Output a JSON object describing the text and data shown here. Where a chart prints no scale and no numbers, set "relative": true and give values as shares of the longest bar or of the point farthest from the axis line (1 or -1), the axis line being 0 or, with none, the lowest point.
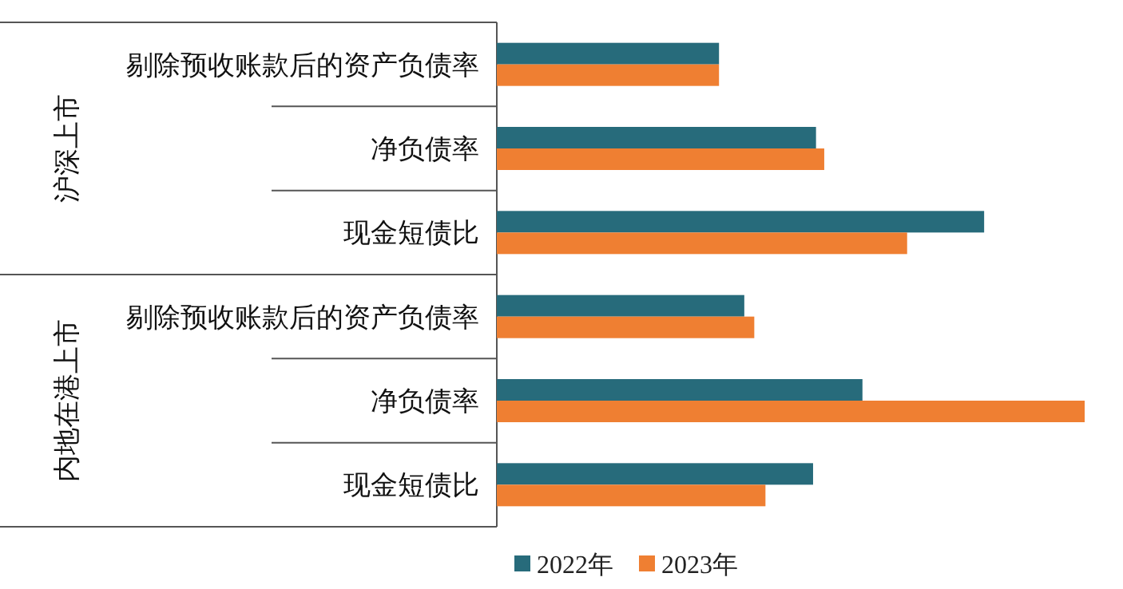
{
  "chart_data": {
    "type": "bar",
    "orientation": "horizontal",
    "relative": true,
    "legend": "bottom",
    "categories": [
      "剔除预收账款后的资产负债率",
      "净负债率",
      "现金短债比",
      "剔除预收账款后的资产负债率",
      "净负债率",
      "现金短债比"
    ],
    "annotations": [
      "沪深上市",
      "内地在港上市"
    ],
    "series": [
      {
        "name": "2022年",
        "color": "#276b7b",
        "values": [
          0.378,
          0.543,
          0.829,
          0.421,
          0.622,
          0.538
        ]
      },
      {
        "name": "2023年",
        "color": "#ef7f32",
        "values": [
          0.378,
          0.557,
          0.698,
          0.438,
          1,
          0.457
        ]
      }
    ]
  }
}
